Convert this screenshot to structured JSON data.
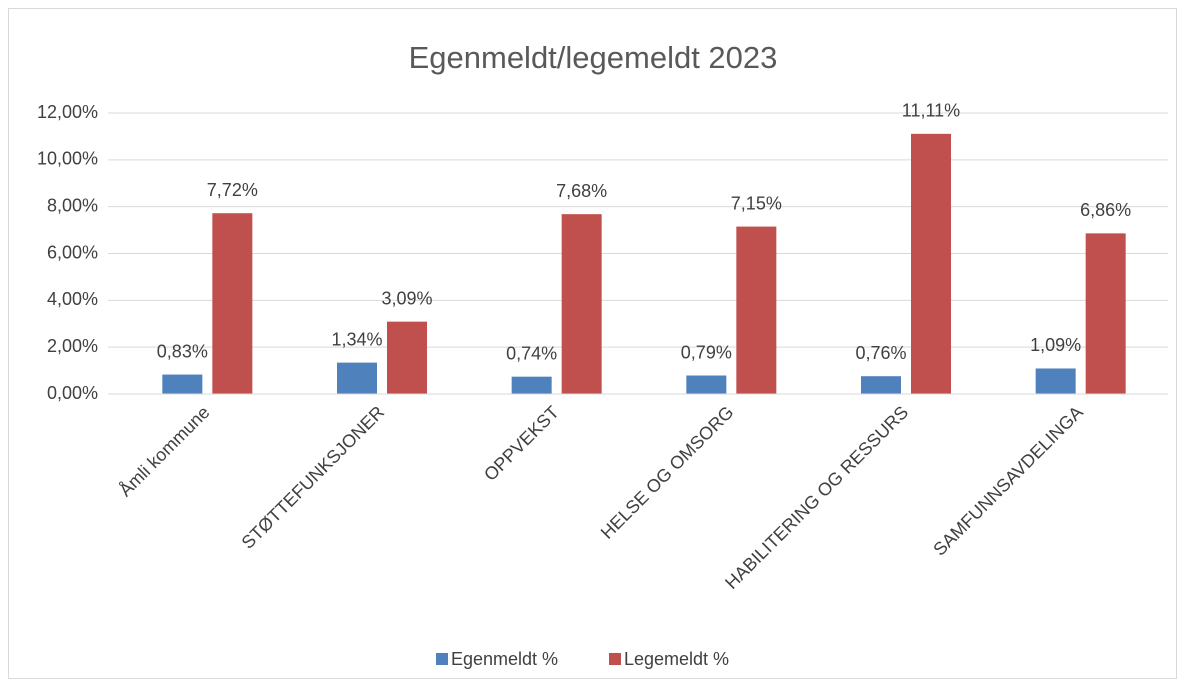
{
  "chart_data": {
    "type": "bar",
    "title": "Egenmeldt/legemeldt 2023",
    "categories": [
      "Åmli kommune",
      "STØTTEFUNKSJONER",
      "OPPVEKST",
      "HELSE OG OMSORG",
      "HABILITERING OG RESSURS",
      "SAMFUNNSAVDELINGA"
    ],
    "series": [
      {
        "name": "Egenmeldt %",
        "color": "#4f81bd",
        "values": [
          0.83,
          1.34,
          0.74,
          0.79,
          0.76,
          1.09
        ],
        "value_labels": [
          "0,83%",
          "1,34%",
          "0,74%",
          "0,79%",
          "0,76%",
          "1,09%"
        ]
      },
      {
        "name": "Legemeldt %",
        "color": "#c0504d",
        "values": [
          7.72,
          3.09,
          7.68,
          7.15,
          11.11,
          6.86
        ],
        "value_labels": [
          "7,72%",
          "3,09%",
          "7,68%",
          "7,15%",
          "11,11%",
          "6,86%"
        ]
      }
    ],
    "ylim": [
      0,
      12
    ],
    "yticks": [
      {
        "value": 0,
        "label": "0,00%"
      },
      {
        "value": 2,
        "label": "2,00%"
      },
      {
        "value": 4,
        "label": "4,00%"
      },
      {
        "value": 6,
        "label": "6,00%"
      },
      {
        "value": 8,
        "label": "8,00%"
      },
      {
        "value": 10,
        "label": "10,00%"
      },
      {
        "value": 12,
        "label": "12,00%"
      }
    ],
    "grid": true,
    "legend": "bottom"
  }
}
